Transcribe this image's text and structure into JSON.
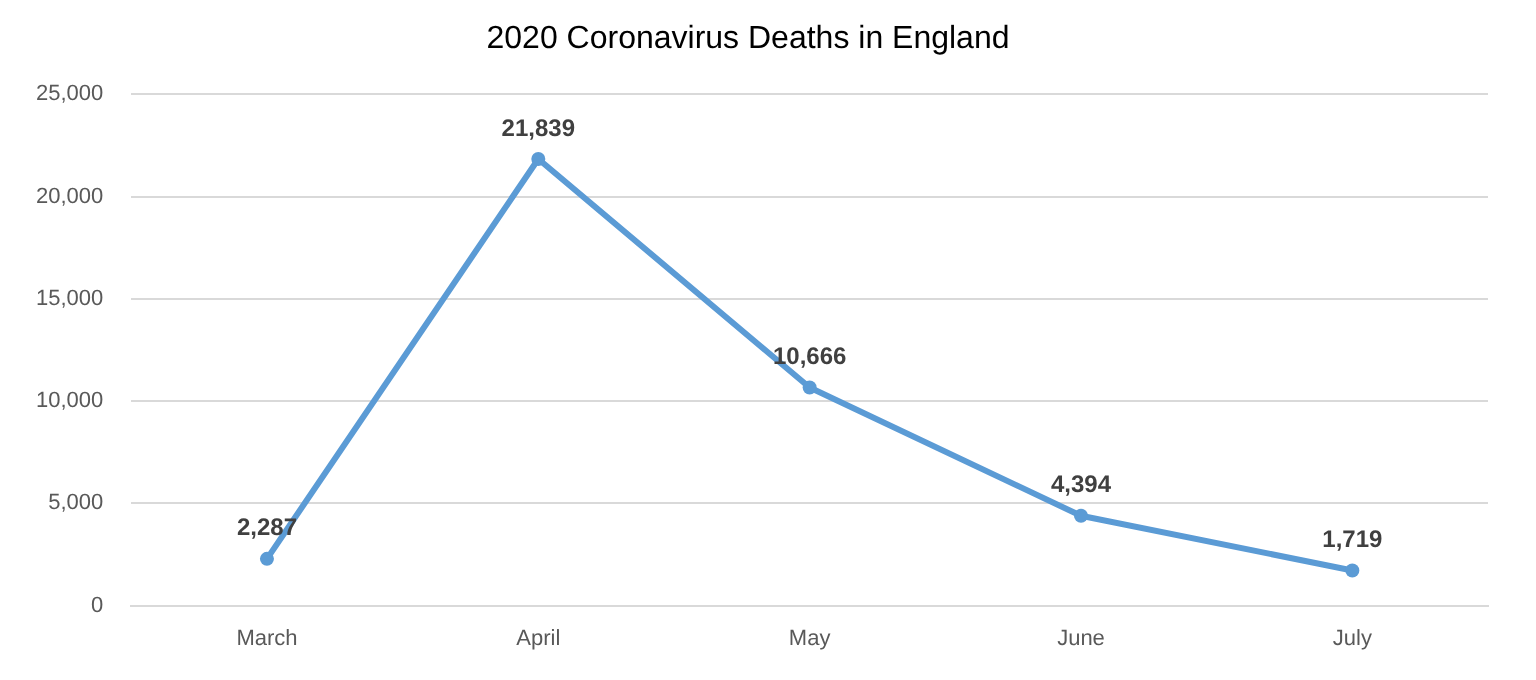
{
  "chart_data": {
    "type": "line",
    "title": "2020 Coronavirus Deaths in England",
    "categories": [
      "March",
      "April",
      "May",
      "June",
      "July"
    ],
    "series": [
      {
        "color": "#5b9bd5",
        "values": [
          2287,
          21839,
          10666,
          4394,
          1719
        ],
        "value_labels": [
          "2,287",
          "21,839",
          "10,666",
          "4,394",
          "1,719"
        ]
      }
    ],
    "ylim": [
      0,
      25000
    ],
    "yticks": [
      {
        "value": 0,
        "label": "0"
      },
      {
        "value": 5000,
        "label": "5,000"
      },
      {
        "value": 10000,
        "label": "10,000"
      },
      {
        "value": 15000,
        "label": "15,000"
      },
      {
        "value": 20000,
        "label": "20,000"
      },
      {
        "value": 25000,
        "label": "25,000"
      }
    ],
    "grid": "y",
    "legend": false,
    "marker": "circle",
    "line_style": "solid"
  }
}
